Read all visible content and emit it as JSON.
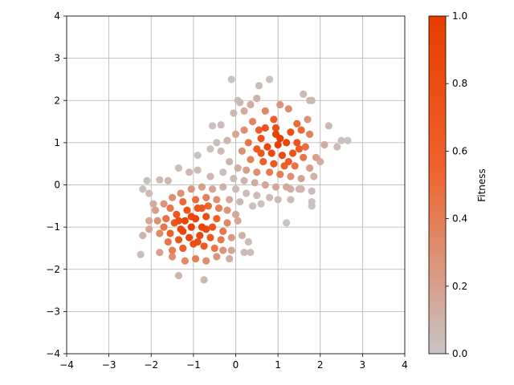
{
  "chart_data": {
    "type": "scatter",
    "title": "",
    "xlabel": "",
    "ylabel": "",
    "xlim": [
      -4,
      4
    ],
    "ylim": [
      -4,
      4
    ],
    "xticks": [
      -4,
      -3,
      -2,
      -1,
      0,
      1,
      2,
      3,
      4
    ],
    "yticks": [
      -4,
      -3,
      -2,
      -1,
      0,
      1,
      2,
      3,
      4
    ],
    "xtick_labels": [
      "−4",
      "−3",
      "−2",
      "−1",
      "0",
      "1",
      "2",
      "3",
      "4"
    ],
    "ytick_labels": [
      "−4",
      "−3",
      "−2",
      "−1",
      "0",
      "1",
      "2",
      "3",
      "4"
    ],
    "grid": true,
    "colorbar": {
      "label": "Fitness",
      "range": [
        0,
        1
      ],
      "ticks": [
        0.0,
        0.2,
        0.4,
        0.6,
        0.8,
        1.0
      ],
      "tick_labels": [
        "0.0",
        "0.2",
        "0.4",
        "0.6",
        "0.8",
        "1.0"
      ],
      "colors": [
        "#c8c4c4",
        "#f0622c",
        "#e83c00"
      ]
    },
    "clusters": [
      {
        "center": [
          1,
          1
        ],
        "spread": 0.55
      },
      {
        "center": [
          -1,
          -1
        ],
        "spread": 0.55
      }
    ],
    "points": [
      [
        -0.1,
        2.5
      ],
      [
        0.8,
        2.5
      ],
      [
        0.55,
        2.35
      ],
      [
        1.6,
        2.15
      ],
      [
        1.75,
        2.0
      ],
      [
        1.8,
        2.0
      ],
      [
        0.05,
        2.0
      ],
      [
        0.1,
        1.95
      ],
      [
        0.5,
        2.05
      ],
      [
        0.35,
        1.9
      ],
      [
        1.05,
        1.9
      ],
      [
        -0.05,
        1.7
      ],
      [
        0.2,
        1.75
      ],
      [
        0.7,
        1.75
      ],
      [
        1.25,
        1.8
      ],
      [
        2.2,
        1.4
      ],
      [
        -0.55,
        1.4
      ],
      [
        -0.35,
        1.42
      ],
      [
        0.4,
        1.5
      ],
      [
        0.9,
        1.55
      ],
      [
        1.45,
        1.45
      ],
      [
        1.7,
        1.55
      ],
      [
        0.0,
        1.2
      ],
      [
        0.2,
        1.3
      ],
      [
        0.55,
        1.3
      ],
      [
        -0.2,
        1.05
      ],
      [
        -0.45,
        1.0
      ],
      [
        -0.6,
        0.85
      ],
      [
        -0.35,
        0.8
      ],
      [
        -0.9,
        0.7
      ],
      [
        0.3,
        1.0
      ],
      [
        0.6,
        1.1
      ],
      [
        0.95,
        1.2
      ],
      [
        1.3,
        1.25
      ],
      [
        1.55,
        1.3
      ],
      [
        1.75,
        1.2
      ],
      [
        2.1,
        0.95
      ],
      [
        2.4,
        0.9
      ],
      [
        2.5,
        1.05
      ],
      [
        2.65,
        1.05
      ],
      [
        0.15,
        0.8
      ],
      [
        0.5,
        0.85
      ],
      [
        0.75,
        0.9
      ],
      [
        1.0,
        0.95
      ],
      [
        1.2,
        1.0
      ],
      [
        1.45,
        1.0
      ],
      [
        1.65,
        0.9
      ],
      [
        0.85,
        0.75
      ],
      [
        1.1,
        0.7
      ],
      [
        1.35,
        0.75
      ],
      [
        1.6,
        0.65
      ],
      [
        1.9,
        0.65
      ],
      [
        2.0,
        0.55
      ],
      [
        0.35,
        0.6
      ],
      [
        0.65,
        0.55
      ],
      [
        0.9,
        0.5
      ],
      [
        1.15,
        0.45
      ],
      [
        1.4,
        0.45
      ],
      [
        1.75,
        0.4
      ],
      [
        -0.15,
        0.55
      ],
      [
        0.05,
        0.4
      ],
      [
        0.25,
        0.35
      ],
      [
        0.5,
        0.3
      ],
      [
        0.8,
        0.3
      ],
      [
        1.05,
        0.25
      ],
      [
        1.3,
        0.2
      ],
      [
        1.55,
        0.15
      ],
      [
        1.85,
        0.2
      ],
      [
        -0.3,
        0.3
      ],
      [
        -0.6,
        0.2
      ],
      [
        -0.05,
        0.15
      ],
      [
        0.2,
        0.1
      ],
      [
        0.45,
        0.05
      ],
      [
        0.7,
        0.0
      ],
      [
        0.95,
        -0.05
      ],
      [
        1.2,
        -0.05
      ],
      [
        1.5,
        -0.1
      ],
      [
        1.8,
        -0.15
      ],
      [
        -0.9,
        0.35
      ],
      [
        -1.1,
        0.3
      ],
      [
        -1.35,
        0.4
      ],
      [
        -1.6,
        0.1
      ],
      [
        -1.8,
        0.12
      ],
      [
        -2.1,
        0.1
      ],
      [
        -2.2,
        -0.1
      ],
      [
        -2.05,
        -0.2
      ],
      [
        -0.3,
        -0.05
      ],
      [
        0.0,
        -0.1
      ],
      [
        0.25,
        -0.2
      ],
      [
        0.5,
        -0.25
      ],
      [
        0.8,
        -0.3
      ],
      [
        1.0,
        -0.35
      ],
      [
        1.3,
        -0.35
      ],
      [
        1.8,
        -0.4
      ],
      [
        1.8,
        -0.5
      ],
      [
        -0.15,
        -0.35
      ],
      [
        0.1,
        -0.4
      ],
      [
        0.4,
        -0.5
      ],
      [
        0.6,
        -0.45
      ],
      [
        -0.55,
        -0.1
      ],
      [
        -0.8,
        -0.05
      ],
      [
        -1.05,
        -0.1
      ],
      [
        -1.3,
        -0.2
      ],
      [
        -1.5,
        -0.3
      ],
      [
        -1.7,
        -0.45
      ],
      [
        -1.95,
        -0.45
      ],
      [
        -1.9,
        -0.6
      ],
      [
        -1.55,
        -0.55
      ],
      [
        -1.25,
        -0.4
      ],
      [
        -0.95,
        -0.35
      ],
      [
        -0.7,
        -0.3
      ],
      [
        -0.45,
        -0.35
      ],
      [
        -0.2,
        -0.6
      ],
      [
        0.0,
        -0.7
      ],
      [
        -0.4,
        -0.55
      ],
      [
        -0.65,
        -0.5
      ],
      [
        -0.9,
        -0.55
      ],
      [
        -1.15,
        -0.6
      ],
      [
        -1.4,
        -0.7
      ],
      [
        -1.65,
        -0.8
      ],
      [
        -1.85,
        -0.85
      ],
      [
        -2.05,
        -0.85
      ],
      [
        -2.05,
        -1.05
      ],
      [
        -1.7,
        -1.0
      ],
      [
        -1.45,
        -0.9
      ],
      [
        -1.2,
        -0.85
      ],
      [
        -0.95,
        -0.8
      ],
      [
        -0.7,
        -0.75
      ],
      [
        -0.45,
        -0.8
      ],
      [
        -0.2,
        -0.9
      ],
      [
        0.05,
        -0.85
      ],
      [
        -0.3,
        -1.1
      ],
      [
        -0.55,
        -1.0
      ],
      [
        -0.8,
        -1.0
      ],
      [
        -1.05,
        -1.0
      ],
      [
        -1.3,
        -1.05
      ],
      [
        -1.55,
        -1.15
      ],
      [
        -1.8,
        -1.15
      ],
      [
        -2.2,
        -1.2
      ],
      [
        -1.6,
        -1.35
      ],
      [
        -1.35,
        -1.3
      ],
      [
        -1.1,
        -1.25
      ],
      [
        -0.85,
        -1.2
      ],
      [
        -0.6,
        -1.25
      ],
      [
        -0.35,
        -1.3
      ],
      [
        -0.1,
        -1.25
      ],
      [
        0.15,
        -1.2
      ],
      [
        -0.5,
        -1.5
      ],
      [
        -0.75,
        -1.45
      ],
      [
        -1.0,
        -1.4
      ],
      [
        -1.25,
        -1.5
      ],
      [
        -1.5,
        -1.55
      ],
      [
        -1.8,
        -1.6
      ],
      [
        0.3,
        -1.35
      ],
      [
        0.2,
        -1.6
      ],
      [
        0.35,
        -1.6
      ],
      [
        -0.1,
        -1.55
      ],
      [
        -0.3,
        -1.55
      ],
      [
        -0.15,
        -1.75
      ],
      [
        -0.45,
        -1.7
      ],
      [
        -0.7,
        -1.8
      ],
      [
        -0.95,
        -1.75
      ],
      [
        -1.2,
        -1.8
      ],
      [
        -1.5,
        -1.7
      ],
      [
        -1.35,
        -2.15
      ],
      [
        -0.75,
        -2.25
      ],
      [
        -2.25,
        -1.65
      ],
      [
        1.2,
        -0.9
      ],
      [
        1.3,
        -0.1
      ],
      [
        1.55,
        -0.1
      ],
      [
        0.95,
        1.35
      ],
      [
        1.05,
        1.1
      ],
      [
        0.7,
        1.35
      ],
      [
        1.25,
        0.55
      ],
      [
        0.6,
        0.75
      ],
      [
        1.5,
        0.85
      ],
      [
        -1.05,
        -0.75
      ],
      [
        -0.8,
        -0.55
      ],
      [
        -1.25,
        -1.1
      ],
      [
        -0.9,
        -1.35
      ],
      [
        -1.35,
        -0.85
      ],
      [
        -0.7,
        -1.05
      ]
    ]
  }
}
